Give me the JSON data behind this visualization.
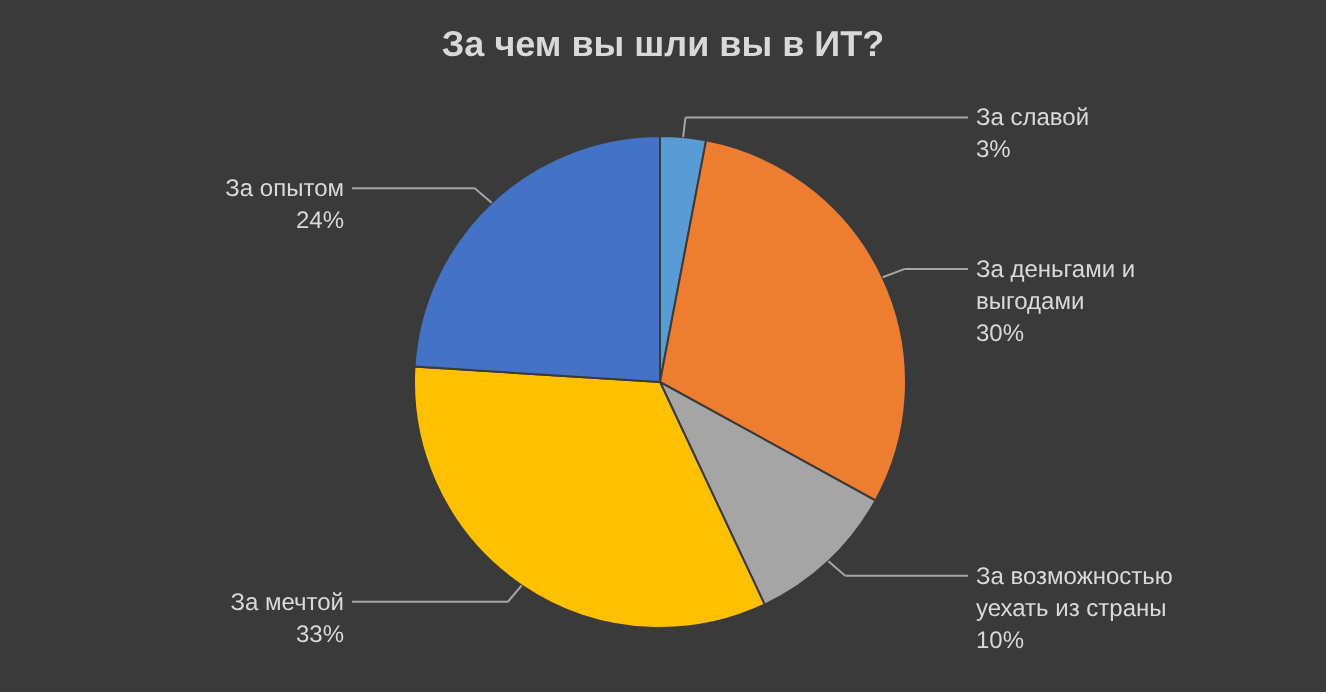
{
  "chart_data": {
    "type": "pie",
    "title": "За чем вы шли вы в ИТ?",
    "categories": [
      "За славой",
      "За деньгами и выгодами",
      "За возможностью уехать из страны",
      "За мечтой",
      "За опытом"
    ],
    "values": [
      3,
      30,
      10,
      33,
      24
    ],
    "value_labels": [
      "3%",
      "30%",
      "10%",
      "33%",
      "24%"
    ],
    "colors": [
      "#5b9bd5",
      "#ed7d31",
      "#a5a5a5",
      "#ffc000",
      "#4472c4"
    ],
    "legend": false
  }
}
